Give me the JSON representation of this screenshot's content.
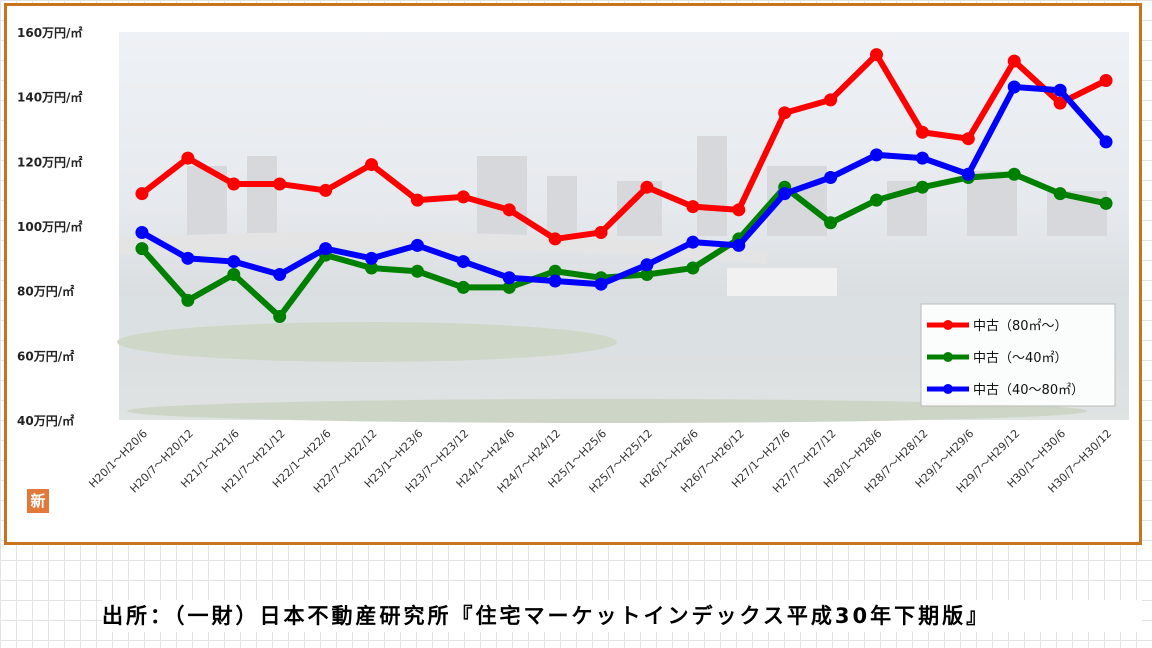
{
  "source": {
    "text": "出所：（一財）日本不動産研究所『住宅マーケットインデックス平成30年下期版』"
  },
  "badge": {
    "glyph": "新",
    "icon": "shin-badge-icon"
  },
  "colors": {
    "frame": "#c8741e",
    "series": [
      "#ff0000",
      "#008000",
      "#0000ff"
    ]
  },
  "chart_data": {
    "type": "line",
    "title": "",
    "xlabel": "",
    "ylabel": "",
    "ylim": [
      40,
      160
    ],
    "yticks": [
      40,
      60,
      80,
      100,
      120,
      140,
      160
    ],
    "ytick_labels": [
      "40万円/㎡",
      "60万円/㎡",
      "80万円/㎡",
      "100万円/㎡",
      "120万円/㎡",
      "140万円/㎡",
      "160万円/㎡"
    ],
    "grid": false,
    "legend_position": "bottom-right",
    "categories": [
      "H20/1～H20/6",
      "H20/7～H20/12",
      "H21/1～H21/6",
      "H21/7～H21/12",
      "H22/1～H22/6",
      "H22/7～H22/12",
      "H23/1～H23/6",
      "H23/7～H23/12",
      "H24/1～H24/6",
      "H24/7～H24/12",
      "H25/1～H25/6",
      "H25/7～H25/12",
      "H26/1～H26/6",
      "H26/7～H26/12",
      "H27/1～H27/6",
      "H27/7～H27/12",
      "H28/1～H28/6",
      "H28/7～H28/12",
      "H29/1～H29/6",
      "H29/7～H29/12",
      "H30/1～H30/6",
      "H30/7～H30/12"
    ],
    "series": [
      {
        "name": "中古（80㎡～）",
        "color": "#ff0000",
        "values": [
          110,
          121,
          113,
          113,
          111,
          119,
          108,
          109,
          105,
          96,
          98,
          112,
          106,
          105,
          135,
          139,
          153,
          129,
          127,
          151,
          138,
          145
        ]
      },
      {
        "name": "中古（～40㎡）",
        "color": "#008000",
        "values": [
          93,
          77,
          85,
          72,
          91,
          87,
          86,
          81,
          81,
          86,
          84,
          85,
          87,
          96,
          112,
          101,
          108,
          112,
          115,
          116,
          110,
          107
        ]
      },
      {
        "name": "中古（40～80㎡）",
        "color": "#0000ff",
        "values": [
          98,
          90,
          89,
          85,
          93,
          90,
          94,
          89,
          84,
          83,
          82,
          88,
          95,
          94,
          110,
          115,
          122,
          121,
          116,
          143,
          142,
          126
        ]
      }
    ]
  }
}
